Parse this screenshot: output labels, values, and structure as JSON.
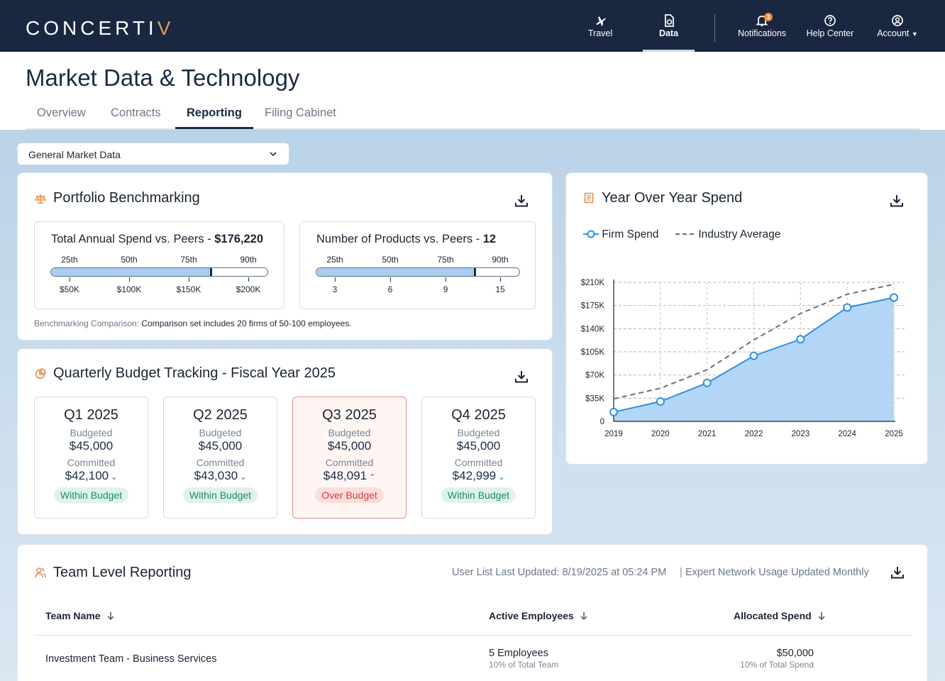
{
  "brand": {
    "name_main": "CONCERTI",
    "name_accent": "V"
  },
  "nav": {
    "travel": "Travel",
    "data": "Data",
    "notifications": "Notifications",
    "notification_count": "3",
    "help": "Help Center",
    "account": "Account"
  },
  "page": {
    "title": "Market Data & Technology"
  },
  "tabs": [
    "Overview",
    "Contracts",
    "Reporting",
    "Filing Cabinet"
  ],
  "filter": {
    "selected": "General Market Data"
  },
  "portfolio": {
    "title": "Portfolio Benchmarking",
    "spend": {
      "label": "Total Annual Spend vs. Peers - ",
      "value": "$176,220",
      "percentiles": [
        "25th",
        "50th",
        "75th",
        "90th"
      ],
      "ticks": [
        "$50K",
        "$100K",
        "$150K",
        "$200K"
      ],
      "fill_fraction": 0.74
    },
    "products": {
      "label": "Number of Products vs. Peers - ",
      "value": "12",
      "percentiles": [
        "25th",
        "50th",
        "75th",
        "90th"
      ],
      "ticks": [
        "3",
        "6",
        "9",
        "15"
      ],
      "fill_fraction": 0.78
    },
    "note_label": "Benchmarking Comparison:",
    "note_text": " Comparison set includes 20 firms of 50-100 employees."
  },
  "budget": {
    "title": "Quarterly Budget Tracking - Fiscal Year 2025",
    "budgeted_label": "Budgeted",
    "committed_label": "Committed",
    "quarters": [
      {
        "name": "Q1 2025",
        "budgeted": "$45,000",
        "committed": "$42,100",
        "status": "Within Budget"
      },
      {
        "name": "Q2 2025",
        "budgeted": "$45,000",
        "committed": "$43,030",
        "status": "Within Budget"
      },
      {
        "name": "Q3 2025",
        "budgeted": "$45,000",
        "committed": "$48,091",
        "status": "Over Budget"
      },
      {
        "name": "Q4 2025",
        "budgeted": "$45,000",
        "committed": "$42,999",
        "status": "Within Budget"
      }
    ]
  },
  "yoy": {
    "title": "Year Over Year Spend",
    "legend_firm": "Firm Spend",
    "legend_industry": "Industry Average"
  },
  "chart_data": {
    "type": "area",
    "title": "Year Over Year Spend",
    "x": [
      "2019",
      "2020",
      "2021",
      "2022",
      "2023",
      "2024",
      "2025"
    ],
    "series": [
      {
        "name": "Firm Spend",
        "values": [
          14000,
          30000,
          58000,
          99000,
          124000,
          172000,
          187000
        ],
        "color": "#2d8fe0"
      },
      {
        "name": "Industry Average",
        "values": [
          34000,
          50000,
          78000,
          123000,
          163000,
          192000,
          207000
        ],
        "color": "#6f6f6f"
      }
    ],
    "yticks": [
      "0",
      "$35K",
      "$70K",
      "$105K",
      "$140K",
      "$175K",
      "$210K"
    ],
    "ylim": [
      0,
      210000
    ],
    "xlabel": "",
    "ylabel": ""
  },
  "team": {
    "title": "Team Level Reporting",
    "updated": "User List Last Updated: 8/19/2025 at 05:24 PM",
    "usage": "Expert Network Usage Updated Monthly",
    "columns": [
      "Team Name",
      "Active Employees",
      "Allocated Spend"
    ],
    "rows": [
      {
        "name": "Investment Team - Business Services",
        "employees": "5 Employees",
        "employees_sub": "10% of Total Team",
        "spend": "$50,000",
        "spend_sub": "10% of Total Spend"
      }
    ]
  },
  "colors": {
    "navy": "#192740",
    "accent": "#e29a5b",
    "blue": "#2d8fe0",
    "green": "#1e8a5e",
    "red": "#c9423a"
  }
}
